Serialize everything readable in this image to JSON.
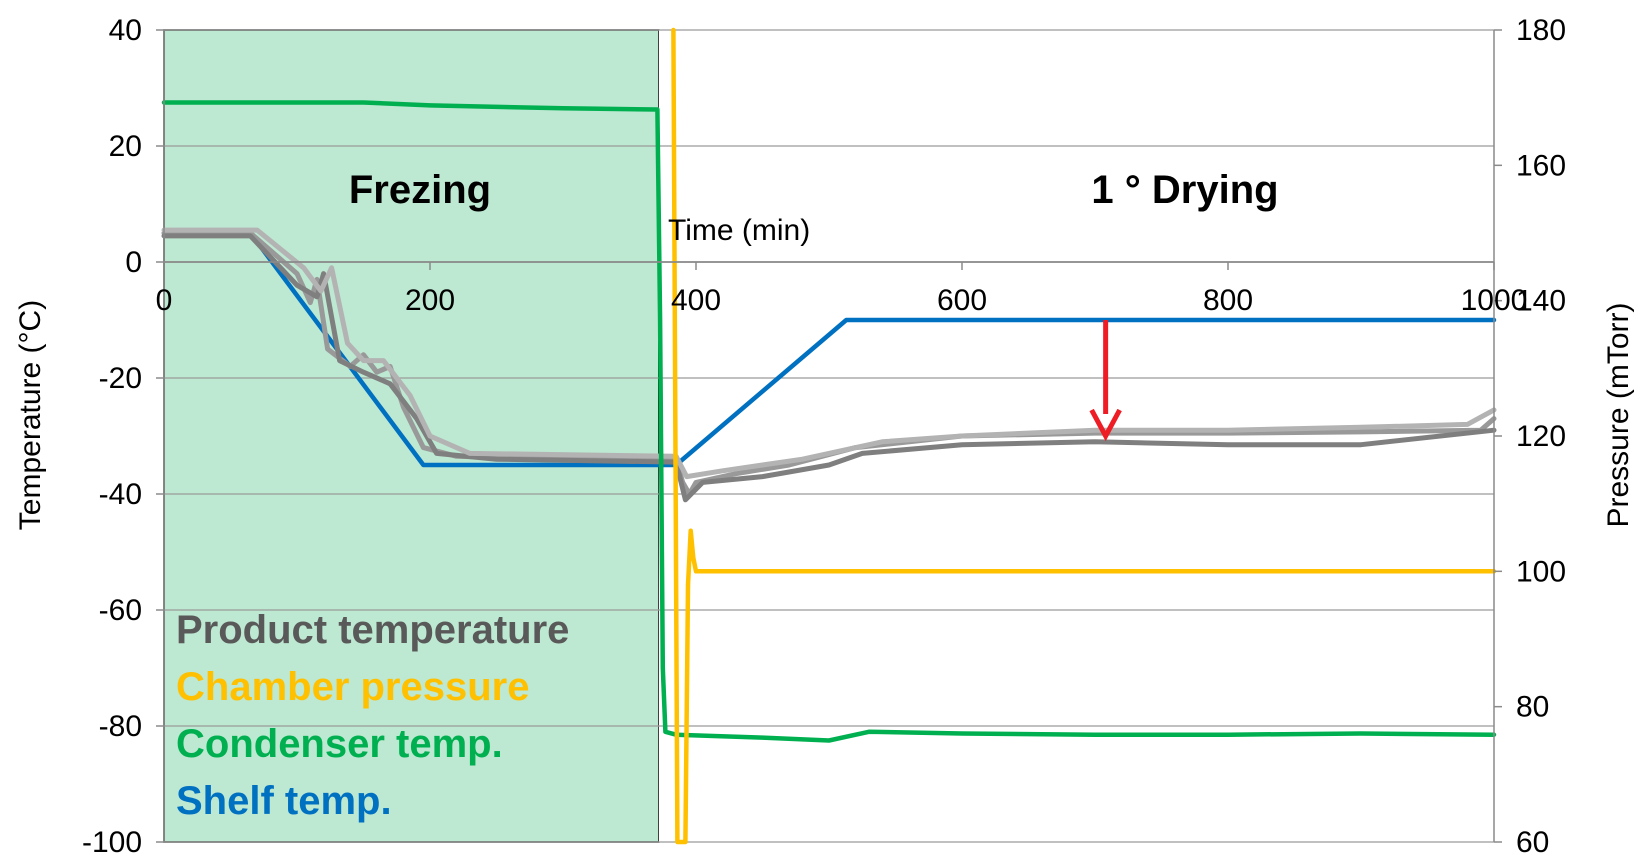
{
  "chart_data": {
    "type": "line",
    "title": "",
    "xlabel": "Time (min)",
    "ylabel": "Temperature (°C)",
    "y2label": "Pressure (mTorr)",
    "xlim": [
      0,
      1000
    ],
    "ylim": [
      -100,
      40
    ],
    "y2lim": [
      60,
      180
    ],
    "x_ticks": [
      "0",
      "200",
      "400",
      "600",
      "800",
      "1000"
    ],
    "x_tick_values": [
      0,
      200,
      400,
      600,
      800,
      1000
    ],
    "y_ticks": [
      "40",
      "20",
      "0",
      "-20",
      "-40",
      "-60",
      "-80",
      "-100"
    ],
    "y_tick_values": [
      40,
      20,
      0,
      -20,
      -40,
      -60,
      -80,
      -100
    ],
    "y2_ticks": [
      "180",
      "160",
      "140",
      "120",
      "100",
      "80",
      "60"
    ],
    "y2_tick_values": [
      180,
      160,
      140,
      120,
      100,
      80,
      60
    ],
    "grid": "horizontal",
    "phases": [
      {
        "label": "Frezing",
        "x_start": 0,
        "x_end": 372,
        "color": "#bde8d2"
      },
      {
        "label": "1 ° Drying",
        "x_start": 372,
        "x_end": 1000,
        "color": "#ffffff"
      }
    ],
    "annotation": {
      "type": "arrow",
      "x": 708,
      "y_from": -10,
      "y_to": -30,
      "color": "#ee1c24"
    },
    "legend": {
      "placement": "bottom-left",
      "entries": [
        {
          "name": "Product temperature",
          "color": "#595959"
        },
        {
          "name": "Chamber pressure",
          "color": "#ffc000"
        },
        {
          "name": "Condenser temp.",
          "color": "#00b050"
        },
        {
          "name": "Shelf temp.",
          "color": "#0070c0"
        }
      ]
    },
    "series": [
      {
        "name": "Shelf temp.",
        "axis": "left",
        "color": "#0070c0",
        "points": [
          [
            0,
            5
          ],
          [
            65,
            5
          ],
          [
            195,
            -35
          ],
          [
            385,
            -35
          ],
          [
            513,
            -10
          ],
          [
            1000,
            -10
          ]
        ]
      },
      {
        "name": "Condenser temp.",
        "axis": "left",
        "color": "#00b050",
        "points": [
          [
            0,
            27.5
          ],
          [
            150,
            27.5
          ],
          [
            200,
            27
          ],
          [
            300,
            26.5
          ],
          [
            371,
            26.3
          ],
          [
            373,
            -10
          ],
          [
            375,
            -70
          ],
          [
            377,
            -81
          ],
          [
            385,
            -81.5
          ],
          [
            450,
            -82
          ],
          [
            500,
            -82.5
          ],
          [
            530,
            -81
          ],
          [
            600,
            -81.3
          ],
          [
            700,
            -81.5
          ],
          [
            800,
            -81.5
          ],
          [
            900,
            -81.3
          ],
          [
            1000,
            -81.5
          ]
        ]
      },
      {
        "name": "Product temperature",
        "axis": "left",
        "color": "#999999",
        "points": [
          [
            0,
            5
          ],
          [
            65,
            5
          ],
          [
            100,
            -2
          ],
          [
            110,
            -7
          ],
          [
            115,
            -3
          ],
          [
            123,
            -15
          ],
          [
            140,
            -18
          ],
          [
            150,
            -16
          ],
          [
            160,
            -19
          ],
          [
            170,
            -18
          ],
          [
            180,
            -25
          ],
          [
            195,
            -32
          ],
          [
            220,
            -33.5
          ],
          [
            300,
            -34
          ],
          [
            385,
            -34
          ],
          [
            390,
            -38
          ],
          [
            395,
            -40
          ],
          [
            400,
            -38
          ],
          [
            430,
            -36.5
          ],
          [
            470,
            -35
          ],
          [
            520,
            -32
          ],
          [
            600,
            -30
          ],
          [
            700,
            -29.5
          ],
          [
            800,
            -29.5
          ],
          [
            900,
            -29.3
          ],
          [
            990,
            -29
          ],
          [
            1000,
            -27
          ]
        ]
      },
      {
        "name": "Product temperature",
        "axis": "left",
        "color": "#7f7f7f",
        "points": [
          [
            0,
            4.5
          ],
          [
            65,
            4.5
          ],
          [
            100,
            -4
          ],
          [
            115,
            -6
          ],
          [
            120,
            -2
          ],
          [
            132,
            -17
          ],
          [
            150,
            -19
          ],
          [
            170,
            -21
          ],
          [
            190,
            -27
          ],
          [
            205,
            -33
          ],
          [
            250,
            -34
          ],
          [
            385,
            -34.5
          ],
          [
            392,
            -41
          ],
          [
            405,
            -38
          ],
          [
            450,
            -37
          ],
          [
            500,
            -35
          ],
          [
            525,
            -33
          ],
          [
            600,
            -31.5
          ],
          [
            700,
            -31
          ],
          [
            800,
            -31.5
          ],
          [
            900,
            -31.5
          ],
          [
            1000,
            -29
          ]
        ]
      },
      {
        "name": "Product temperature",
        "axis": "left",
        "color": "#b3b3b3",
        "points": [
          [
            0,
            5.5
          ],
          [
            70,
            5.5
          ],
          [
            105,
            -1
          ],
          [
            118,
            -5
          ],
          [
            126,
            -1
          ],
          [
            138,
            -14
          ],
          [
            150,
            -17
          ],
          [
            165,
            -17
          ],
          [
            185,
            -23
          ],
          [
            200,
            -30
          ],
          [
            230,
            -33
          ],
          [
            385,
            -33.5
          ],
          [
            393,
            -37
          ],
          [
            420,
            -36
          ],
          [
            480,
            -34
          ],
          [
            540,
            -31
          ],
          [
            600,
            -30
          ],
          [
            700,
            -29
          ],
          [
            800,
            -29
          ],
          [
            900,
            -28.5
          ],
          [
            980,
            -28
          ],
          [
            1000,
            -25.5
          ]
        ]
      },
      {
        "name": "Chamber pressure",
        "axis": "right",
        "color": "#ffc000",
        "points": [
          [
            383,
            180
          ],
          [
            386,
            60
          ],
          [
            392,
            60
          ],
          [
            394,
            98
          ],
          [
            396,
            106
          ],
          [
            398,
            102
          ],
          [
            400,
            100
          ],
          [
            1000,
            100
          ]
        ]
      }
    ]
  }
}
